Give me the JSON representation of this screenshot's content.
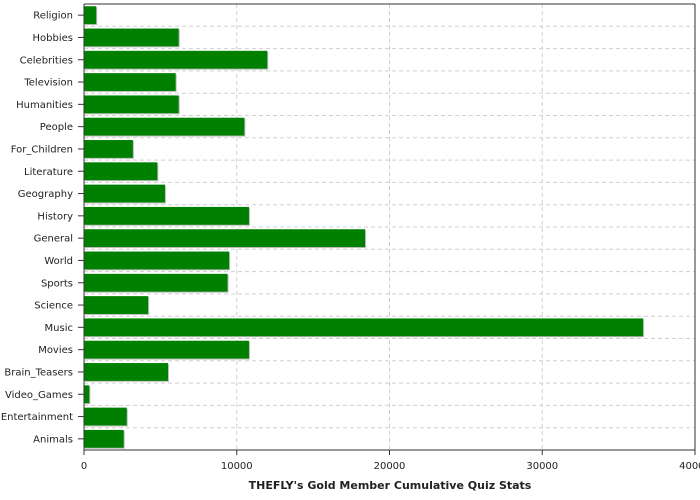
{
  "chart_data": {
    "type": "bar",
    "orientation": "horizontal",
    "title": "",
    "xlabel": "THEFLY's Gold Member Cumulative Quiz Stats",
    "ylabel": "",
    "xlim": [
      0,
      40000
    ],
    "xticks": [
      "0",
      "10000",
      "20000",
      "30000",
      "40000"
    ],
    "grid": true,
    "bar_color": "#008000",
    "categories": [
      "Religion",
      "Hobbies",
      "Celebrities",
      "Television",
      "Humanities",
      "People",
      "For_Children",
      "Literature",
      "Geography",
      "History",
      "General",
      "World",
      "Sports",
      "Science",
      "Music",
      "Movies",
      "Brain_Teasers",
      "Video_Games",
      "Entertainment",
      "Animals"
    ],
    "values": [
      800,
      6200,
      12000,
      6000,
      6200,
      10500,
      3200,
      4800,
      5300,
      10800,
      18400,
      9500,
      9400,
      4200,
      36600,
      10800,
      5500,
      350,
      2800,
      2600
    ]
  }
}
